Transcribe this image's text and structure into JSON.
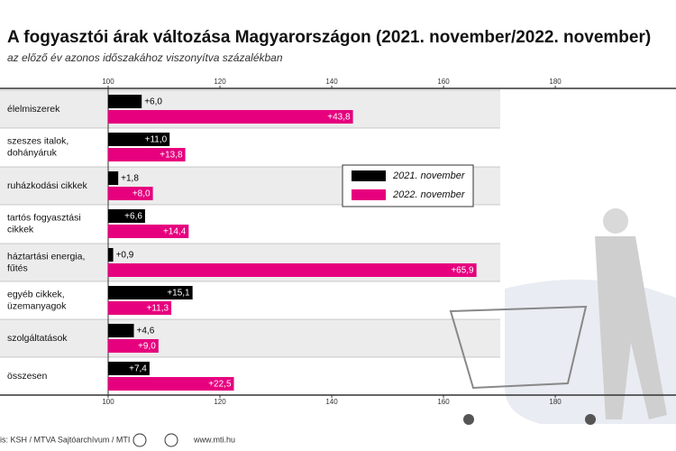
{
  "chart_data": {
    "type": "bar",
    "title": "A fogyasztói árak változása Magyarországon (2021. november/2022. november)",
    "subtitle": "az előző év azonos időszakához viszonyítva százalékban",
    "categories": [
      "élelmiszerek",
      "szeszes italok,\ndohányáruk",
      "ruházkodási cikkek",
      "tartós fogyasztási\ncikkek",
      "háztartási energia,\nfűtés",
      "egyéb cikkek,\nüzemanyagok",
      "szolgáltatások",
      "összesen"
    ],
    "series": [
      {
        "name": "2021. november",
        "color": "#000000",
        "values": [
          106.0,
          111.0,
          101.8,
          106.6,
          100.9,
          115.1,
          104.6,
          107.4
        ],
        "value_labels": [
          "+6,0",
          "+11,0",
          "+1,8",
          "+6,6",
          "+0,9",
          "+15,1",
          "+4,6",
          "+7,4"
        ]
      },
      {
        "name": "2022. november",
        "color": "#e6007e",
        "values": [
          143.8,
          113.8,
          108.0,
          114.4,
          165.9,
          111.3,
          109.0,
          122.5
        ],
        "value_labels": [
          "+43,8",
          "+13,8",
          "+8,0",
          "+14,4",
          "+65,9",
          "+11,3",
          "+9,0",
          "+22,5"
        ]
      }
    ],
    "xlim": [
      100,
      201.6
    ],
    "xticks": [
      100,
      120,
      140,
      160,
      180
    ],
    "source": "is: KSH / MTVA Sajtóarchívum / MTI",
    "website": "www.mti.hu"
  }
}
